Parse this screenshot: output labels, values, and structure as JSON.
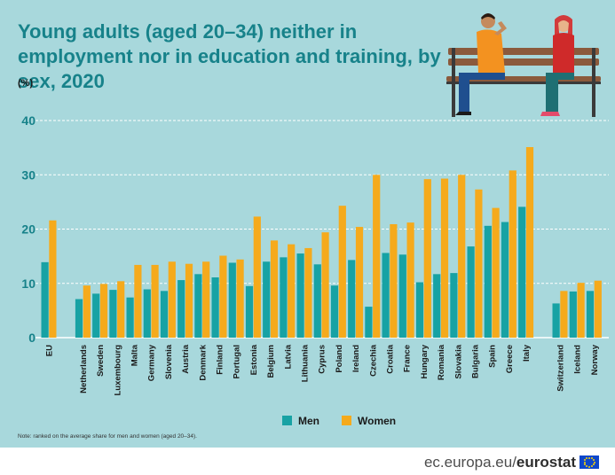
{
  "header": {
    "title": "Young adults (aged 20–34) neither in employment nor in education and training, by sex, 2020",
    "unit": "(%)"
  },
  "note": "Note: ranked on the average share for men and women (aged 20–34).",
  "footer": {
    "site": "ec.europa.eu/",
    "brand": "eurostat"
  },
  "colors": {
    "background": "#a8d8dc",
    "men": "#17a2a4",
    "women": "#f5aa1c",
    "title": "#17828a"
  },
  "chart_data": {
    "type": "bar",
    "categories": [
      "EU",
      "Netherlands",
      "Sweden",
      "Luxembourg",
      "Malta",
      "Germany",
      "Slovenia",
      "Austria",
      "Denmark",
      "Finland",
      "Portugal",
      "Estonia",
      "Belgium",
      "Latvia",
      "Lithuania",
      "Cyprus",
      "Poland",
      "Ireland",
      "Czechia",
      "Croatia",
      "France",
      "Hungary",
      "Romania",
      "Slovakia",
      "Bulgaria",
      "Spain",
      "Greece",
      "Italy",
      "Switzerland",
      "Iceland",
      "Norway"
    ],
    "groups": [
      [
        "EU"
      ],
      [
        "Netherlands",
        "Sweden",
        "Luxembourg",
        "Malta",
        "Germany",
        "Slovenia",
        "Austria",
        "Denmark",
        "Finland",
        "Portugal",
        "Estonia",
        "Belgium",
        "Latvia",
        "Lithuania",
        "Cyprus",
        "Poland",
        "Ireland",
        "Czechia",
        "Croatia",
        "France",
        "Hungary",
        "Romania",
        "Slovakia",
        "Bulgaria",
        "Spain",
        "Greece",
        "Italy"
      ],
      [
        "Switzerland",
        "Iceland",
        "Norway"
      ]
    ],
    "series": [
      {
        "name": "Men",
        "color": "#17a2a4",
        "values": [
          13.9,
          7.1,
          8.1,
          8.8,
          7.4,
          8.9,
          8.6,
          10.6,
          11.7,
          11.1,
          13.8,
          9.5,
          14.0,
          14.8,
          15.5,
          13.5,
          9.6,
          14.3,
          5.7,
          15.6,
          15.3,
          10.2,
          11.7,
          11.9,
          16.8,
          20.6,
          21.3,
          24.1,
          6.3,
          8.5,
          8.6
        ]
      },
      {
        "name": "Women",
        "color": "#f5aa1c",
        "values": [
          21.6,
          9.6,
          9.9,
          10.4,
          13.4,
          13.4,
          14.0,
          13.6,
          14.0,
          15.1,
          14.4,
          22.3,
          17.9,
          17.2,
          16.5,
          19.4,
          24.3,
          20.4,
          30.0,
          20.9,
          21.2,
          29.2,
          29.3,
          30.0,
          27.3,
          23.9,
          30.8,
          35.1,
          8.6,
          10.1,
          10.5
        ]
      }
    ],
    "ylim": [
      0,
      40
    ],
    "yticks": [
      0,
      10,
      20,
      30,
      40
    ],
    "grid": true,
    "legend": "bottom"
  }
}
